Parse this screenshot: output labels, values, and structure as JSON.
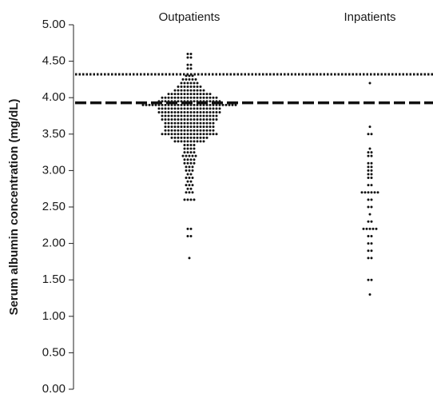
{
  "chart_data": {
    "type": "dot",
    "y_label": "Serum albumin concentration (mg/dL)",
    "ylim": [
      0,
      5
    ],
    "yticks": [
      {
        "value": 0,
        "label": "0.00"
      },
      {
        "value": 0.5,
        "label": "0.50"
      },
      {
        "value": 1,
        "label": "1.00"
      },
      {
        "value": 1.5,
        "label": "1.50"
      },
      {
        "value": 2,
        "label": "2.00"
      },
      {
        "value": 2.5,
        "label": "2.50"
      },
      {
        "value": 3,
        "label": "3.00"
      },
      {
        "value": 3.5,
        "label": "3.50"
      },
      {
        "value": 4,
        "label": "4.00"
      },
      {
        "value": 4.5,
        "label": "4.50"
      },
      {
        "value": 5,
        "label": "5.00"
      }
    ],
    "reference_lines": [
      {
        "value": 4.32,
        "style": "dotted"
      },
      {
        "value": 3.93,
        "style": "dashed"
      }
    ],
    "color": "#111111",
    "series": [
      {
        "name": "Outpatients",
        "values": [
          4.6,
          4.6,
          4.55,
          4.55,
          4.45,
          4.45,
          4.4,
          4.4,
          4.3,
          4.3,
          4.3,
          4.25,
          4.25,
          4.25,
          4.25,
          4.25,
          4.2,
          4.2,
          4.2,
          4.2,
          4.2,
          4.2,
          4.15,
          4.15,
          4.15,
          4.15,
          4.15,
          4.15,
          4.15,
          4.15,
          4.1,
          4.1,
          4.1,
          4.1,
          4.1,
          4.1,
          4.1,
          4.1,
          4.1,
          4.1,
          4.05,
          4.05,
          4.05,
          4.05,
          4.05,
          4.05,
          4.05,
          4.05,
          4.05,
          4.05,
          4.05,
          4.05,
          4.05,
          4.05,
          4,
          4,
          4,
          4,
          4,
          4,
          4,
          4,
          4,
          4,
          4,
          4,
          4,
          4,
          4,
          4,
          4,
          4,
          3.95,
          3.95,
          3.95,
          3.95,
          3.95,
          3.95,
          3.95,
          3.95,
          3.95,
          3.95,
          3.95,
          3.95,
          3.95,
          3.95,
          3.95,
          3.95,
          3.95,
          3.95,
          3.95,
          3.95,
          3.9,
          3.9,
          3.9,
          3.9,
          3.9,
          3.9,
          3.9,
          3.9,
          3.9,
          3.9,
          3.9,
          3.9,
          3.9,
          3.9,
          3.9,
          3.9,
          3.9,
          3.9,
          3.9,
          3.9,
          3.9,
          3.9,
          3.9,
          3.9,
          3.9,
          3.9,
          3.9,
          3.9,
          3.9,
          3.9,
          3.85,
          3.85,
          3.85,
          3.85,
          3.85,
          3.85,
          3.85,
          3.85,
          3.85,
          3.85,
          3.85,
          3.85,
          3.85,
          3.85,
          3.85,
          3.85,
          3.85,
          3.85,
          3.85,
          3.85,
          3.8,
          3.8,
          3.8,
          3.8,
          3.8,
          3.8,
          3.8,
          3.8,
          3.8,
          3.8,
          3.8,
          3.8,
          3.8,
          3.8,
          3.8,
          3.8,
          3.8,
          3.8,
          3.8,
          3.8,
          3.75,
          3.75,
          3.75,
          3.75,
          3.75,
          3.75,
          3.75,
          3.75,
          3.75,
          3.75,
          3.75,
          3.75,
          3.75,
          3.75,
          3.75,
          3.75,
          3.75,
          3.75,
          3.7,
          3.7,
          3.7,
          3.7,
          3.7,
          3.7,
          3.7,
          3.7,
          3.7,
          3.7,
          3.7,
          3.7,
          3.7,
          3.7,
          3.7,
          3.7,
          3.7,
          3.7,
          3.65,
          3.65,
          3.65,
          3.65,
          3.65,
          3.65,
          3.65,
          3.65,
          3.65,
          3.65,
          3.65,
          3.65,
          3.65,
          3.65,
          3.65,
          3.65,
          3.6,
          3.6,
          3.6,
          3.6,
          3.6,
          3.6,
          3.6,
          3.6,
          3.6,
          3.6,
          3.6,
          3.6,
          3.6,
          3.6,
          3.6,
          3.6,
          3.55,
          3.55,
          3.55,
          3.55,
          3.55,
          3.55,
          3.55,
          3.55,
          3.55,
          3.55,
          3.55,
          3.55,
          3.55,
          3.55,
          3.55,
          3.55,
          3.5,
          3.5,
          3.5,
          3.5,
          3.5,
          3.5,
          3.5,
          3.5,
          3.5,
          3.5,
          3.5,
          3.5,
          3.5,
          3.5,
          3.5,
          3.5,
          3.5,
          3.5,
          3.45,
          3.45,
          3.45,
          3.45,
          3.45,
          3.45,
          3.45,
          3.45,
          3.45,
          3.45,
          3.45,
          3.45,
          3.4,
          3.4,
          3.4,
          3.4,
          3.4,
          3.4,
          3.4,
          3.4,
          3.4,
          3.4,
          3.35,
          3.35,
          3.35,
          3.35,
          3.3,
          3.3,
          3.3,
          3.3,
          3.25,
          3.25,
          3.25,
          3.25,
          3.2,
          3.2,
          3.2,
          3.2,
          3.2,
          3.15,
          3.15,
          3.15,
          3.15,
          3.1,
          3.1,
          3.1,
          3.1,
          3.05,
          3.05,
          3.05,
          3,
          3,
          3,
          2.95,
          2.95,
          2.9,
          2.9,
          2.9,
          2.85,
          2.85,
          2.8,
          2.8,
          2.8,
          2.75,
          2.75,
          2.7,
          2.7,
          2.7,
          2.6,
          2.6,
          2.6,
          2.6,
          2.2,
          2.2,
          2.1,
          2.1,
          1.8
        ]
      },
      {
        "name": "Inpatients",
        "values": [
          4.2,
          3.6,
          3.5,
          3.5,
          3.3,
          3.25,
          3.25,
          3.2,
          3.2,
          3.1,
          3.1,
          3.05,
          3.05,
          3,
          3,
          2.95,
          2.95,
          2.9,
          2.9,
          2.8,
          2.8,
          2.7,
          2.7,
          2.7,
          2.7,
          2.7,
          2.7,
          2.6,
          2.6,
          2.5,
          2.5,
          2.4,
          2.3,
          2.3,
          2.2,
          2.2,
          2.2,
          2.2,
          2.2,
          2.1,
          2.1,
          2,
          2,
          1.9,
          1.9,
          1.8,
          1.8,
          1.5,
          1.5,
          1.3
        ]
      }
    ]
  }
}
